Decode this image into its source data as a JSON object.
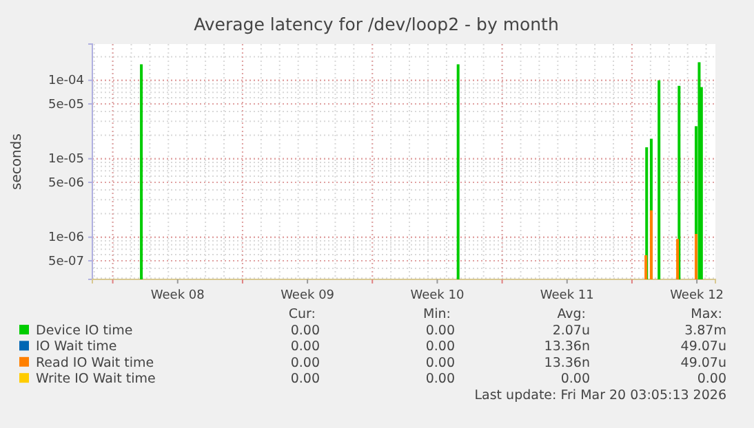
{
  "chart_data": {
    "type": "bar",
    "title": "Average latency for /dev/loop2 - by month",
    "ylabel": "seconds",
    "log": true,
    "grid": true,
    "legend": "bottom",
    "xlim": [
      "2026-02-14T21:36",
      "2026-03-20T12:00"
    ],
    "xticks": [
      {
        "value": "2026-02-16",
        "label": null
      },
      {
        "value": "2026-02-19T12:00",
        "label": "Week 08"
      },
      {
        "value": "2026-02-23",
        "label": null
      },
      {
        "value": "2026-02-26T12:00",
        "label": "Week 09"
      },
      {
        "value": "2026-03-02",
        "label": null
      },
      {
        "value": "2026-03-05T12:00",
        "label": "Week 10"
      },
      {
        "value": "2026-03-09",
        "label": null
      },
      {
        "value": "2026-03-12T12:00",
        "label": "Week 11"
      },
      {
        "value": "2026-03-16",
        "label": null
      },
      {
        "value": "2026-03-19T12:00",
        "label": "Week 12"
      }
    ],
    "ylim": [
      2.9e-07,
      0.00029
    ],
    "yticks": [
      {
        "value": 5e-07,
        "label": "5e-07"
      },
      {
        "value": 1e-06,
        "label": "1e-06"
      },
      {
        "value": 5e-06,
        "label": "5e-06"
      },
      {
        "value": 1e-05,
        "label": "1e-05"
      },
      {
        "value": 5e-05,
        "label": "5e-05"
      },
      {
        "value": 0.0001,
        "label": "1e-04"
      }
    ],
    "series": [
      {
        "name": "Device IO time",
        "color": "#00cc00",
        "x": [
          "2026-02-17T13:00",
          "2026-03-06T15:00",
          "2026-03-16T19:00",
          "2026-03-17T01:00",
          "2026-03-17T11:00",
          "2026-03-18T13:00",
          "2026-03-19T11:00",
          "2026-03-19T15:00",
          "2026-03-19T18:00"
        ],
        "values": [
          0.00016,
          0.00016,
          1.4e-05,
          1.8e-05,
          0.0001,
          8.5e-05,
          2.6e-05,
          0.00017,
          8.2e-05
        ]
      },
      {
        "name": "IO Wait time",
        "color": "#0066b3"
      },
      {
        "name": "Read IO Wait time",
        "color": "#ff8000",
        "x": [
          "2026-03-16T18:00",
          "2026-03-17T01:00",
          "2026-03-18T11:00",
          "2026-03-19T11:00"
        ],
        "values": [
          5.9e-07,
          2.2e-06,
          9.5e-07,
          1.1e-06
        ]
      },
      {
        "name": "Write IO Wait time",
        "color": "#ffcc00"
      }
    ],
    "annotations": [
      "Cur:",
      "Min:",
      "Avg:",
      "Max:",
      "0.00",
      "0.00",
      "2.07u",
      "3.87m",
      "0.00",
      "0.00",
      "13.36n",
      "49.07u",
      "0.00",
      "0.00",
      "13.36n",
      "49.07u",
      "0.00",
      "0.00",
      "0.00",
      "0.00",
      "Last update: Fri Mar 20 03:05:13 2026"
    ]
  }
}
